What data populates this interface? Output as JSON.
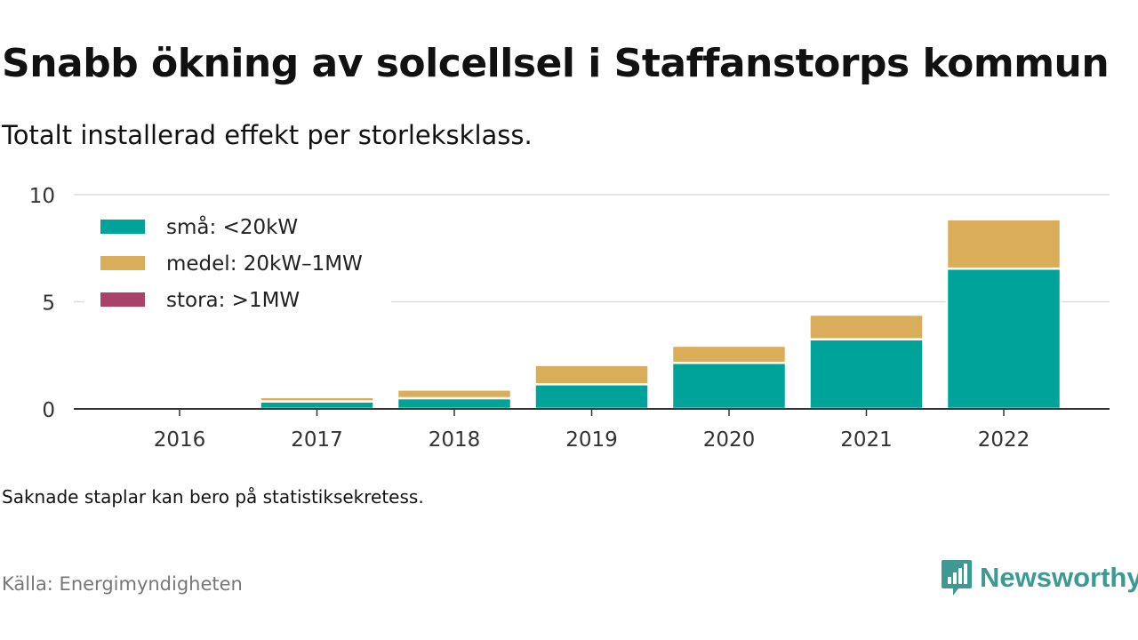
{
  "title": "Snabb ökning av solcellsel i Staffanstorps kommun",
  "subtitle": "Totalt installerad effekt per storleksklass.",
  "note": "Saknade staplar kan bero på statistiksekretess.",
  "source": "Källa: Energimyndigheten",
  "brand": {
    "name": "Newsworthy",
    "color": "#3d9a92",
    "icon": "newsworthy-logo-icon"
  },
  "chart_data": {
    "type": "bar",
    "stacked": true,
    "categories": [
      "2016",
      "2017",
      "2018",
      "2019",
      "2020",
      "2021",
      "2022"
    ],
    "series": [
      {
        "name": "små: <20kW",
        "color": "#00a39a",
        "values": [
          0,
          0.35,
          0.5,
          1.15,
          2.15,
          3.25,
          6.55
        ]
      },
      {
        "name": "medel: 20kW–1MW",
        "color": "#d9ad5a",
        "values": [
          0,
          0.2,
          0.4,
          0.9,
          0.8,
          1.15,
          2.3
        ]
      },
      {
        "name": "stora: >1MW",
        "color": "#a8426b",
        "values": [
          0,
          0,
          0,
          0,
          0,
          0,
          0
        ]
      }
    ],
    "ylim": [
      0,
      10
    ],
    "yticks": [
      "0",
      "5",
      "10"
    ],
    "grid": true,
    "legend_position": "top-left"
  }
}
